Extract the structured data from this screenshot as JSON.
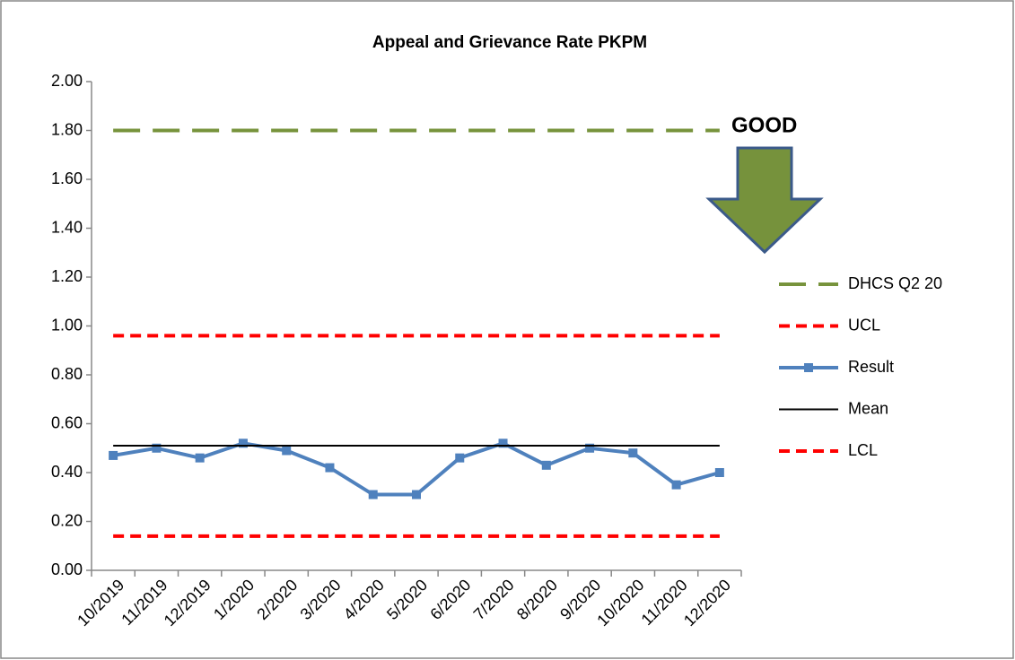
{
  "chart_data": {
    "type": "line",
    "title": "Appeal and Grievance Rate PKPM",
    "annotation": "GOOD",
    "annotation_color": "#76923c",
    "categories": [
      "10/2019",
      "11/2019",
      "12/2019",
      "1/2020",
      "2/2020",
      "3/2020",
      "4/2020",
      "5/2020",
      "6/2020",
      "7/2020",
      "8/2020",
      "9/2020",
      "10/2020",
      "11/2020",
      "12/2020"
    ],
    "series": [
      {
        "name": "DHCS Q2 20",
        "color": "#77933c",
        "dash": "long",
        "values": [
          1.8,
          1.8,
          1.8,
          1.8,
          1.8,
          1.8,
          1.8,
          1.8,
          1.8,
          1.8,
          1.8,
          1.8,
          1.8,
          1.8,
          1.8
        ]
      },
      {
        "name": "UCL",
        "color": "#ff0000",
        "dash": "short",
        "values": [
          0.96,
          0.96,
          0.96,
          0.96,
          0.96,
          0.96,
          0.96,
          0.96,
          0.96,
          0.96,
          0.96,
          0.96,
          0.96,
          0.96,
          0.96
        ]
      },
      {
        "name": "Result",
        "color": "#4f81bd",
        "dash": "solid",
        "marker": "square",
        "values": [
          0.47,
          0.5,
          0.46,
          0.52,
          0.49,
          0.42,
          0.31,
          0.31,
          0.46,
          0.52,
          0.43,
          0.5,
          0.48,
          0.35,
          0.4
        ]
      },
      {
        "name": "Mean",
        "color": "#000000",
        "dash": "thin",
        "values": [
          0.51,
          0.51,
          0.51,
          0.51,
          0.51,
          0.51,
          0.51,
          0.51,
          0.51,
          0.51,
          0.51,
          0.51,
          0.51,
          0.51,
          0.51
        ]
      },
      {
        "name": "LCL",
        "color": "#ff0000",
        "dash": "short",
        "values": [
          0.14,
          0.14,
          0.14,
          0.14,
          0.14,
          0.14,
          0.14,
          0.14,
          0.14,
          0.14,
          0.14,
          0.14,
          0.14,
          0.14,
          0.14
        ]
      }
    ],
    "ylim": [
      0,
      2
    ],
    "yticks": [
      {
        "value": 0,
        "label": "0.00"
      },
      {
        "value": 0.2,
        "label": "0.20"
      },
      {
        "value": 0.4,
        "label": "0.40"
      },
      {
        "value": 0.6,
        "label": "0.60"
      },
      {
        "value": 0.8,
        "label": "0.80"
      },
      {
        "value": 1,
        "label": "1.00"
      },
      {
        "value": 1.2,
        "label": "1.20"
      },
      {
        "value": 1.4,
        "label": "1.40"
      },
      {
        "value": 1.6,
        "label": "1.60"
      },
      {
        "value": 1.8,
        "label": "1.80"
      },
      {
        "value": 2,
        "label": "2.00"
      }
    ],
    "grid": false,
    "legend": "right"
  }
}
